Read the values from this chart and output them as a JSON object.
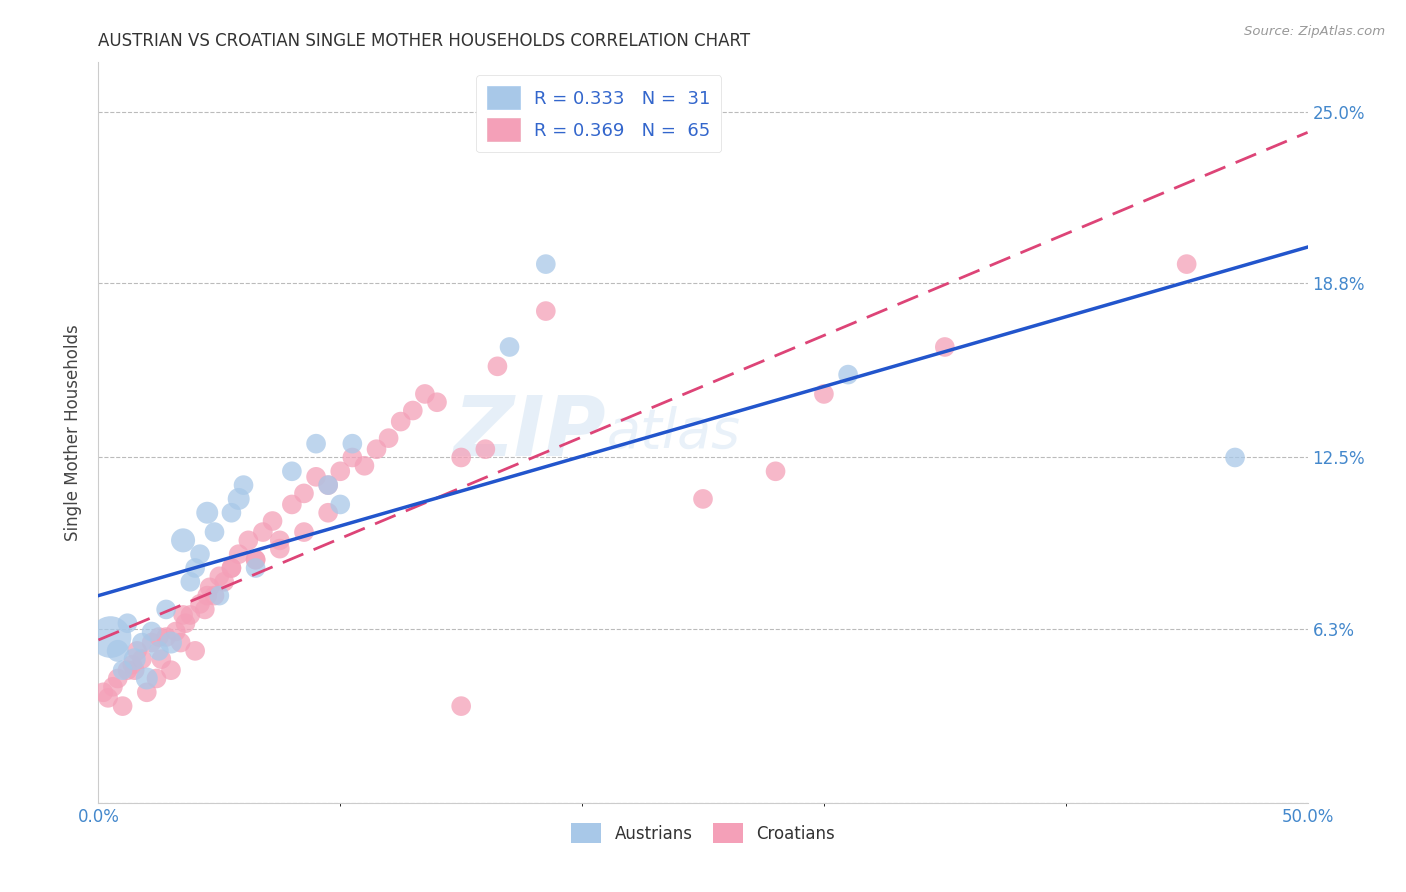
{
  "title": "AUSTRIAN VS CROATIAN SINGLE MOTHER HOUSEHOLDS CORRELATION CHART",
  "source": "Source: ZipAtlas.com",
  "ylabel": "Single Mother Households",
  "xmin": 0.0,
  "xmax": 0.5,
  "ymin": 0.0,
  "ymax": 0.268,
  "yticks": [
    0.0,
    0.063,
    0.125,
    0.188,
    0.25
  ],
  "ytick_labels": [
    "",
    "6.3%",
    "12.5%",
    "18.8%",
    "25.0%"
  ],
  "xtick_left_label": "0.0%",
  "xtick_right_label": "50.0%",
  "legend_r_austrians": "R = 0.333",
  "legend_n_austrians": "N =  31",
  "legend_r_croatians": "R = 0.369",
  "legend_n_croatians": "N =  65",
  "austrian_color": "#a8c8e8",
  "croatian_color": "#f4a0b8",
  "austrian_line_color": "#2255cc",
  "croatian_line_color": "#dd4477",
  "background_color": "#ffffff",
  "watermark_zip": "ZIP",
  "watermark_atlas": "atlas",
  "austrian_x": [
    0.005,
    0.008,
    0.01,
    0.012,
    0.015,
    0.018,
    0.02,
    0.022,
    0.025,
    0.028,
    0.03,
    0.035,
    0.038,
    0.04,
    0.042,
    0.045,
    0.048,
    0.05,
    0.055,
    0.058,
    0.06,
    0.065,
    0.08,
    0.09,
    0.095,
    0.1,
    0.105,
    0.17,
    0.185,
    0.31,
    0.47
  ],
  "austrian_y": [
    0.06,
    0.055,
    0.048,
    0.065,
    0.052,
    0.058,
    0.045,
    0.062,
    0.055,
    0.07,
    0.058,
    0.095,
    0.08,
    0.085,
    0.09,
    0.105,
    0.098,
    0.075,
    0.105,
    0.11,
    0.115,
    0.085,
    0.12,
    0.13,
    0.115,
    0.108,
    0.13,
    0.165,
    0.195,
    0.155,
    0.125
  ],
  "austrian_size": [
    900,
    250,
    200,
    200,
    250,
    200,
    250,
    200,
    200,
    200,
    250,
    300,
    200,
    200,
    200,
    250,
    200,
    200,
    200,
    250,
    200,
    200,
    200,
    200,
    200,
    200,
    200,
    200,
    200,
    200,
    200
  ],
  "croatian_x": [
    0.002,
    0.004,
    0.006,
    0.008,
    0.01,
    0.012,
    0.014,
    0.016,
    0.018,
    0.02,
    0.022,
    0.024,
    0.026,
    0.028,
    0.03,
    0.032,
    0.034,
    0.036,
    0.038,
    0.04,
    0.042,
    0.044,
    0.046,
    0.048,
    0.05,
    0.052,
    0.055,
    0.058,
    0.062,
    0.065,
    0.068,
    0.072,
    0.075,
    0.08,
    0.085,
    0.09,
    0.095,
    0.1,
    0.105,
    0.11,
    0.115,
    0.12,
    0.125,
    0.13,
    0.135,
    0.14,
    0.015,
    0.025,
    0.035,
    0.045,
    0.055,
    0.065,
    0.075,
    0.085,
    0.095,
    0.15,
    0.16,
    0.165,
    0.185,
    0.28,
    0.3,
    0.15,
    0.35,
    0.25,
    0.45
  ],
  "croatian_y": [
    0.04,
    0.038,
    0.042,
    0.045,
    0.035,
    0.048,
    0.05,
    0.055,
    0.052,
    0.04,
    0.058,
    0.045,
    0.052,
    0.06,
    0.048,
    0.062,
    0.058,
    0.065,
    0.068,
    0.055,
    0.072,
    0.07,
    0.078,
    0.075,
    0.082,
    0.08,
    0.085,
    0.09,
    0.095,
    0.088,
    0.098,
    0.102,
    0.095,
    0.108,
    0.112,
    0.118,
    0.115,
    0.12,
    0.125,
    0.122,
    0.128,
    0.132,
    0.138,
    0.142,
    0.148,
    0.145,
    0.048,
    0.06,
    0.068,
    0.075,
    0.085,
    0.088,
    0.092,
    0.098,
    0.105,
    0.125,
    0.128,
    0.158,
    0.178,
    0.12,
    0.148,
    0.035,
    0.165,
    0.11,
    0.195
  ],
  "croatian_size": [
    200,
    200,
    200,
    200,
    200,
    200,
    200,
    200,
    200,
    200,
    200,
    200,
    200,
    200,
    200,
    200,
    200,
    200,
    200,
    200,
    200,
    200,
    200,
    200,
    200,
    200,
    200,
    200,
    200,
    200,
    200,
    200,
    200,
    200,
    200,
    200,
    200,
    200,
    200,
    200,
    200,
    200,
    200,
    200,
    200,
    200,
    200,
    200,
    200,
    200,
    200,
    200,
    200,
    200,
    200,
    200,
    200,
    200,
    200,
    200,
    200,
    200,
    200,
    200,
    200
  ]
}
